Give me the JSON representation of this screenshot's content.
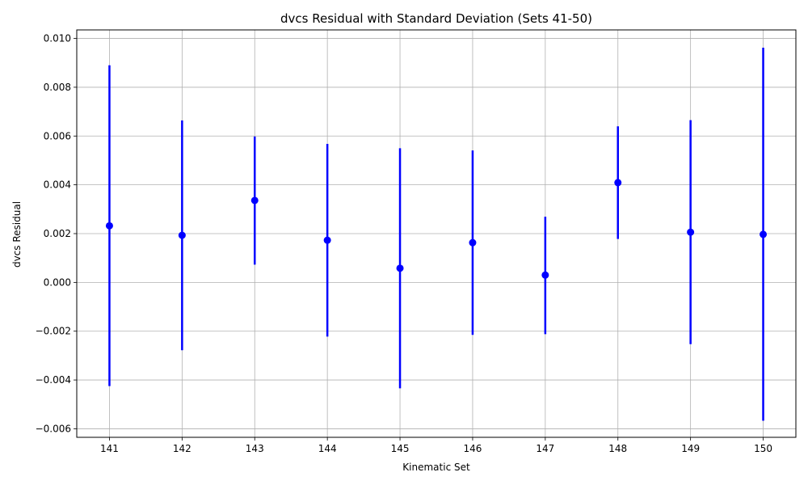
{
  "chart_data": {
    "type": "scatter",
    "title": "dvcs Residual with Standard Deviation (Sets 41-50)",
    "xlabel": "Kinematic Set",
    "ylabel": "dvcs Residual",
    "x": [
      141,
      142,
      143,
      144,
      145,
      146,
      147,
      148,
      149,
      150
    ],
    "x_tick_labels": [
      "141",
      "142",
      "143",
      "144",
      "145",
      "146",
      "147",
      "148",
      "149",
      "150"
    ],
    "y_ticks": [
      -0.006,
      -0.004,
      -0.002,
      0.0,
      0.002,
      0.004,
      0.006,
      0.008,
      0.01
    ],
    "y_tick_labels": [
      "−0.006",
      "−0.004",
      "−0.002",
      "0.000",
      "0.002",
      "0.004",
      "0.006",
      "0.008",
      "0.010"
    ],
    "xlim": [
      140.55,
      150.45
    ],
    "ylim": [
      -0.00635,
      0.01035
    ],
    "grid": true,
    "series": [
      {
        "values": [
          0.00232,
          0.00193,
          0.00336,
          0.00173,
          0.00058,
          0.00163,
          0.0003,
          0.00409,
          0.00206,
          0.00197
        ],
        "yerr_low": [
          -0.00425,
          -0.00278,
          0.00073,
          -0.00222,
          -0.00434,
          -0.00215,
          -0.00212,
          0.00178,
          -0.00253,
          -0.00567
        ],
        "yerr_high": [
          0.0089,
          0.00664,
          0.00598,
          0.00568,
          0.0055,
          0.00541,
          0.00269,
          0.0064,
          0.00665,
          0.00962
        ],
        "color": "#0000ff"
      }
    ]
  }
}
